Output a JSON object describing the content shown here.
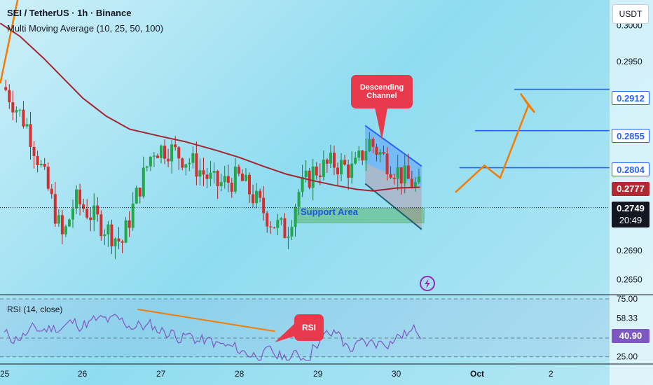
{
  "header": {
    "symbol_line": "SEI / TetherUS · 1h · Binance",
    "indicator_line": "Multi Moving Average (10, 25, 50, 100)",
    "currency_button": "USDT"
  },
  "rsi_panel": {
    "label": "RSI (14, close)"
  },
  "annotations": {
    "descending_channel": "Descending Channel",
    "support_area": "Support Area",
    "rsi_callout": "RSI"
  },
  "price_tags": {
    "target_1": "0.2912",
    "target_2": "0.2855",
    "target_3": "0.2804",
    "ma": "0.2777",
    "last_price": "0.2749",
    "countdown": "20:49"
  },
  "chart_data": [
    {
      "type": "candlestick",
      "title": "SEI / TetherUS · 1h · Binance",
      "x_ticks": [
        "25",
        "26",
        "27",
        "28",
        "29",
        "30",
        "Oct",
        "2"
      ],
      "y_ticks": [
        0.3,
        0.295,
        0.29,
        0.269,
        0.265
      ],
      "ylim": [
        0.263,
        0.3035
      ],
      "last_price": 0.2749,
      "ma_value": 0.2777,
      "horizontal_levels": [
        0.2912,
        0.2855,
        0.2804
      ],
      "support_area": [
        0.2728,
        0.2748
      ],
      "moving_average": [
        [
          -0.05,
          0.3003
        ],
        [
          0.2,
          0.2985
        ],
        [
          0.5,
          0.2955
        ],
        [
          0.8,
          0.2922
        ],
        [
          1.0,
          0.29
        ],
        [
          1.3,
          0.2875
        ],
        [
          1.6,
          0.2857
        ],
        [
          2.0,
          0.2847
        ],
        [
          2.3,
          0.284
        ],
        [
          2.7,
          0.2828
        ],
        [
          3.0,
          0.2818
        ],
        [
          3.3,
          0.2806
        ],
        [
          3.6,
          0.2795
        ],
        [
          3.9,
          0.2787
        ],
        [
          4.2,
          0.278
        ],
        [
          4.5,
          0.2774
        ],
        [
          4.7,
          0.2772
        ],
        [
          5.0,
          0.2776
        ],
        [
          5.3,
          0.2777
        ]
      ],
      "channel_upper": [
        [
          4.6,
          0.2862
        ],
        [
          5.32,
          0.2806
        ]
      ],
      "channel_lower": [
        [
          4.6,
          0.2782
        ],
        [
          5.32,
          0.2719
        ]
      ],
      "projection": [
        [
          5.75,
          0.277
        ],
        [
          6.12,
          0.2807
        ],
        [
          6.32,
          0.279
        ],
        [
          6.68,
          0.289
        ],
        [
          6.58,
          0.2906
        ],
        [
          6.76,
          0.288
        ]
      ],
      "rsi": {
        "ylim": [
          20,
          78
        ],
        "levels": [
          75.0,
          58.33,
          41.14,
          25.0
        ],
        "last": 40.9
      }
    }
  ]
}
